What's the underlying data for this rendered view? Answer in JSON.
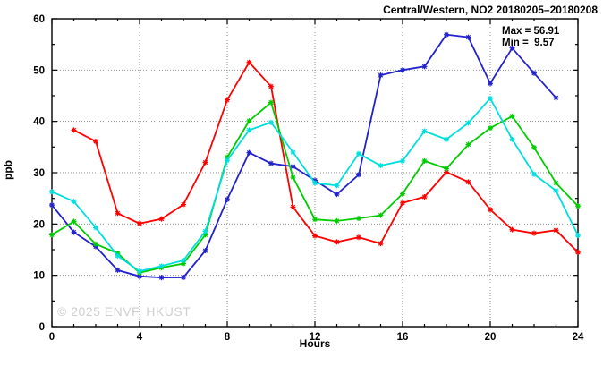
{
  "header": {
    "title": "Central/Western, NO2 20180205–20180208"
  },
  "stats": {
    "max_label": "Max = 56.91",
    "min_label": "Min =  9.57"
  },
  "watermark": {
    "text": "© 2025 ENVF, HKUST"
  },
  "chart_data": {
    "type": "line",
    "title": "Central/Western, NO2 20180205-20180208",
    "xlabel": "Hours",
    "ylabel": "ppb",
    "xlim": [
      0,
      24
    ],
    "ylim": [
      0,
      60
    ],
    "xticks": [
      0,
      4,
      8,
      12,
      16,
      20,
      24
    ],
    "yticks": [
      0,
      10,
      20,
      30,
      40,
      50,
      60
    ],
    "x_minor_step": 1,
    "y_minor_step": 5,
    "grid": true,
    "legend_position": "none",
    "max_value": 56.91,
    "min_value": 9.57,
    "grid_color": "#909090",
    "border_color": "#000000",
    "series": [
      {
        "name": "day-20180205-red",
        "color": "#ff0000",
        "x": [
          1,
          2,
          3,
          4,
          5,
          6,
          7,
          8,
          9,
          10,
          11,
          12,
          13,
          14,
          15,
          16,
          17,
          18,
          19,
          20,
          21,
          22,
          23,
          24
        ],
        "values": [
          38.3,
          36.1,
          22.1,
          20.1,
          21.0,
          23.8,
          32.0,
          44.2,
          51.5,
          46.8,
          23.3,
          17.7,
          16.5,
          17.4,
          16.2,
          24.1,
          25.3,
          30.1,
          28.2,
          22.8,
          18.9,
          18.2,
          18.8,
          14.5
        ]
      },
      {
        "name": "day-20180206-blue",
        "color": "#2222cc",
        "x": [
          0,
          1,
          2,
          3,
          4,
          5,
          6,
          7,
          8,
          9,
          10,
          11,
          12,
          13,
          14,
          15,
          16,
          17,
          18,
          19,
          20,
          21,
          22,
          23
        ],
        "values": [
          23.7,
          18.4,
          15.6,
          11.0,
          9.8,
          9.57,
          9.6,
          14.8,
          24.8,
          33.9,
          31.8,
          31.2,
          28.5,
          25.8,
          29.6,
          49.0,
          50.0,
          50.7,
          56.91,
          56.4,
          47.4,
          54.3,
          49.4,
          44.6
        ]
      },
      {
        "name": "day-20180207-green",
        "color": "#00cc00",
        "x": [
          0,
          1,
          2,
          3,
          4,
          5,
          6,
          7,
          8,
          9,
          10,
          11,
          12,
          13,
          14,
          15,
          16,
          17,
          18,
          19,
          20,
          21,
          22,
          23,
          24
        ],
        "values": [
          17.9,
          20.5,
          16.1,
          14.3,
          10.5,
          11.5,
          12.3,
          17.9,
          33.0,
          40.1,
          43.7,
          29.1,
          20.9,
          20.6,
          21.1,
          21.7,
          25.9,
          32.3,
          30.8,
          35.5,
          38.7,
          41.0,
          34.9,
          28.0,
          23.5
        ]
      },
      {
        "name": "day-20180208-cyan",
        "color": "#00dede",
        "x": [
          0,
          1,
          2,
          3,
          4,
          5,
          6,
          7,
          8,
          9,
          10,
          11,
          12,
          13,
          14,
          15,
          16,
          17,
          18,
          19,
          20,
          21,
          22,
          23,
          24
        ],
        "values": [
          26.3,
          24.4,
          19.3,
          13.8,
          10.8,
          11.8,
          12.9,
          18.6,
          32.4,
          38.3,
          39.8,
          34.0,
          28.0,
          27.5,
          33.7,
          31.4,
          32.3,
          38.1,
          36.5,
          39.7,
          44.5,
          36.5,
          29.7,
          26.5,
          17.8
        ]
      }
    ]
  }
}
